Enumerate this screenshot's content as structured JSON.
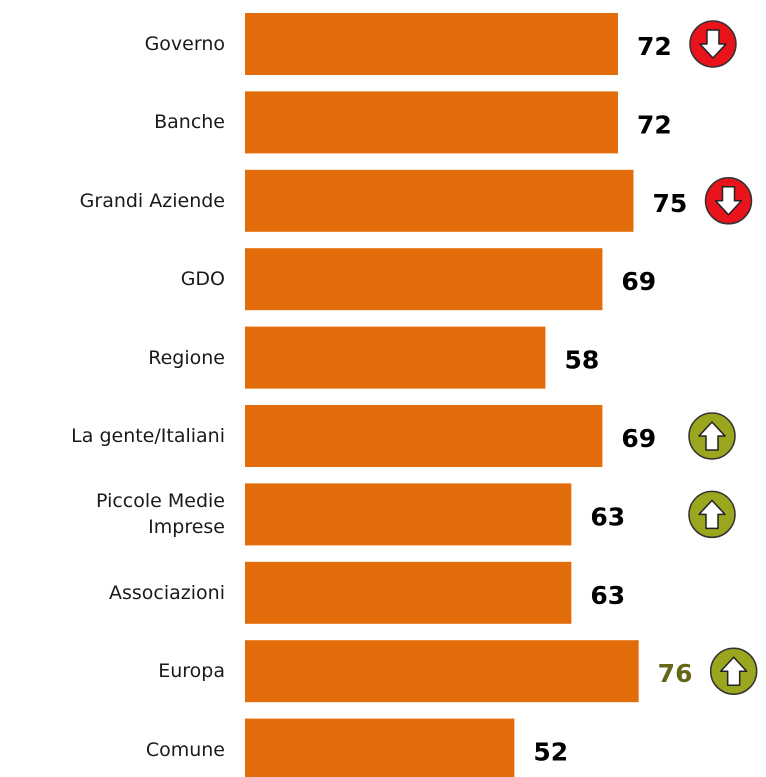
{
  "chart_data": {
    "type": "bar",
    "orientation": "horizontal",
    "categories": [
      "Governo",
      "Banche",
      "Grandi Aziende",
      "GDO",
      "Regione",
      "La gente/Italiani",
      "Piccole Medie Imprese",
      "Associazioni",
      "Europa",
      "Comune"
    ],
    "values": [
      72,
      72,
      75,
      69,
      58,
      69,
      63,
      63,
      76,
      52
    ],
    "color": "#e36c0a",
    "value_label_colors": [
      "#000000",
      "#000000",
      "#000000",
      "#000000",
      "#000000",
      "#000000",
      "#000000",
      "#000000",
      "#666617",
      "#000000"
    ],
    "trend": [
      "down",
      null,
      "down",
      null,
      null,
      "up",
      "up",
      null,
      "up",
      null
    ],
    "trend_colors": {
      "down": "#e8131b",
      "up": "#9ba61f"
    }
  }
}
